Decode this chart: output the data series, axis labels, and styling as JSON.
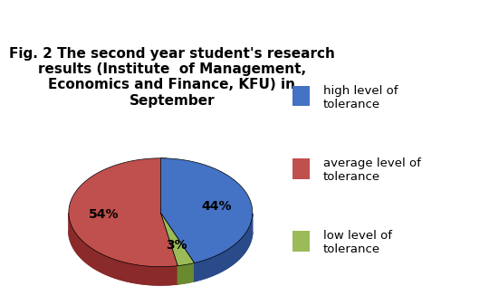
{
  "title": "Fig. 2 The second year student's research\nresults (Institute  of Management,\nEconomics and Finance, KFU) in\nSeptember",
  "slices": [
    44,
    3,
    54
  ],
  "colors": [
    "#4472C4",
    "#9BBB59",
    "#C0504D"
  ],
  "shadow_colors": [
    "#2a4a8a",
    "#6a8a30",
    "#8a2a2a"
  ],
  "pct_labels": [
    "44%",
    "3%",
    "54%"
  ],
  "legend_labels": [
    "high level of\ntolerance",
    "average level of\ntolerance",
    "low level of\ntolerance"
  ],
  "legend_colors": [
    "#4472C4",
    "#C0504D",
    "#9BBB59"
  ],
  "background_color": "#FFFFFF",
  "title_fontsize": 11,
  "legend_fontsize": 9.5
}
